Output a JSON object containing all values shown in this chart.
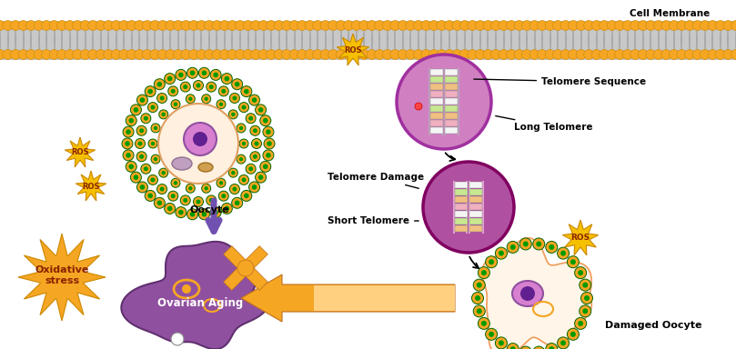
{
  "bg_color": "#ffffff",
  "membrane_orange": "#F5A623",
  "membrane_gray": "#C8C8C8",
  "cell_membrane_text": "Cell Membrane",
  "labels": {
    "oocyte": "Oocyte",
    "telomere_sequence": "Telomere Sequence",
    "long_telomere": "Long Telomere",
    "telomere_damage": "Telomere Damage",
    "short_telomere": "Short Telomere",
    "oxidative_stress": "Oxidative\nstress",
    "ovarian_aging": "Ovarian Aging",
    "damaged_oocyte": "Damaged Oocyte",
    "ros": "ROS"
  },
  "colors": {
    "orange": "#F5A623",
    "orange_edge": "#CC8800",
    "green_dot": "#009900",
    "green_edge": "#006600",
    "ros_star": "#F5C000",
    "ros_text": "#8B2200",
    "tel1_fill": "#D080C0",
    "tel1_edge": "#A030A0",
    "tel2_fill": "#B050A0",
    "tel2_edge": "#800060",
    "tel_stripe_white": "#F5F5F5",
    "tel_stripe_green": "#B8E080",
    "tel_stripe_orange": "#F0C080",
    "tel_stripe_pink": "#F0B0C0",
    "tel_line": "#E0A0D0",
    "arrow_purple": "#7050B0",
    "chr_orange": "#F5A623",
    "chr_edge": "#C07020",
    "oa_fill": "#9050A0",
    "oa_edge": "#603070",
    "oocyte_cream": "#FFF0E0",
    "oocyte_edge": "#E0A060",
    "nucleus_pink": "#D880D0",
    "nucleus_edge": "#9050A0",
    "nucleus_dark": "#602090",
    "do_cream": "#FFF5E8",
    "do_edge": "#F0A060",
    "arrow_orange_body": "#F5A623",
    "arrow_orange_edge": "#C07020"
  }
}
